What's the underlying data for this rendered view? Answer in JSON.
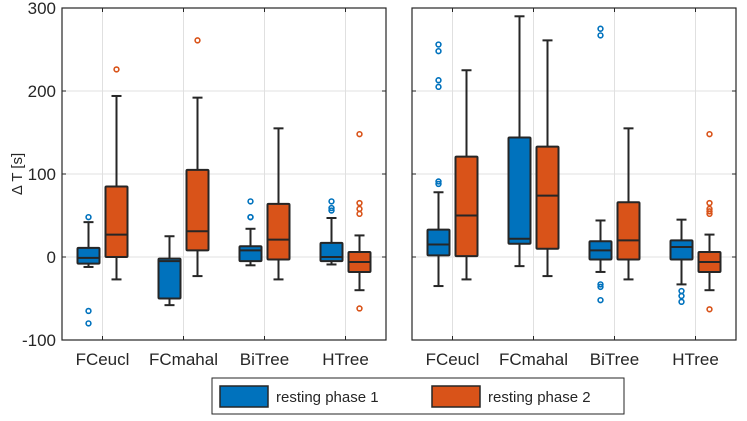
{
  "chart_data": {
    "type": "box",
    "ylabel": "Δ T [s]",
    "ylim": [
      -100,
      300
    ],
    "yticks": [
      -100,
      0,
      100,
      200,
      300
    ],
    "grid": true,
    "categories": [
      "FCeucl",
      "FCmahal",
      "BiTree",
      "HTree"
    ],
    "legend": {
      "placement": "bottom",
      "entries": [
        "resting phase 1",
        "resting phase 2"
      ]
    },
    "colors": {
      "resting phase 1": "#0072BD",
      "resting phase 2": "#D95319",
      "grid": "#E0E0E0",
      "axes": "#262626"
    },
    "panels": [
      {
        "name": "left",
        "boxes": [
          {
            "category": "FCeucl",
            "series": "resting phase 1",
            "whisker_low": -12,
            "q1": -8,
            "median": -1,
            "q3": 11,
            "whisker_high": 42,
            "outliers": [
              48,
              -65,
              -80
            ]
          },
          {
            "category": "FCeucl",
            "series": "resting phase 2",
            "whisker_low": -27,
            "q1": 0,
            "median": 27,
            "q3": 85,
            "whisker_high": 194,
            "outliers": [
              226
            ]
          },
          {
            "category": "FCmahal",
            "series": "resting phase 1",
            "whisker_low": -58,
            "q1": -50,
            "median": -5,
            "q3": -2,
            "whisker_high": 25,
            "outliers": []
          },
          {
            "category": "FCmahal",
            "series": "resting phase 2",
            "whisker_low": -23,
            "q1": 8,
            "median": 31,
            "q3": 105,
            "whisker_high": 192,
            "outliers": [
              261
            ]
          },
          {
            "category": "BiTree",
            "series": "resting phase 1",
            "whisker_low": -10,
            "q1": -5,
            "median": 8,
            "q3": 13,
            "whisker_high": 34,
            "outliers": [
              67,
              48,
              48
            ]
          },
          {
            "category": "BiTree",
            "series": "resting phase 2",
            "whisker_low": -27,
            "q1": -3,
            "median": 21,
            "q3": 64,
            "whisker_high": 155,
            "outliers": []
          },
          {
            "category": "HTree",
            "series": "resting phase 1",
            "whisker_low": -9,
            "q1": -5,
            "median": 0,
            "q3": 17,
            "whisker_high": 47,
            "outliers": [
              67,
              59,
              56
            ]
          },
          {
            "category": "HTree",
            "series": "resting phase 2",
            "whisker_low": -40,
            "q1": -18,
            "median": -6,
            "q3": 6,
            "whisker_high": 26,
            "outliers": [
              148,
              65,
              58,
              52,
              -62
            ]
          }
        ]
      },
      {
        "name": "right",
        "boxes": [
          {
            "category": "FCeucl",
            "series": "resting phase 1",
            "whisker_low": -35,
            "q1": 2,
            "median": 15,
            "q3": 33,
            "whisker_high": 78,
            "outliers": [
              91,
              88,
              248,
              256,
              213,
              205
            ]
          },
          {
            "category": "FCeucl",
            "series": "resting phase 2",
            "whisker_low": -27,
            "q1": 1,
            "median": 50,
            "q3": 121,
            "whisker_high": 225,
            "outliers": []
          },
          {
            "category": "FCmahal",
            "series": "resting phase 1",
            "whisker_low": -11,
            "q1": 16,
            "median": 22,
            "q3": 144,
            "whisker_high": 290,
            "outliers": []
          },
          {
            "category": "FCmahal",
            "series": "resting phase 2",
            "whisker_low": -23,
            "q1": 10,
            "median": 74,
            "q3": 133,
            "whisker_high": 261,
            "outliers": []
          },
          {
            "category": "BiTree",
            "series": "resting phase 1",
            "whisker_low": -18,
            "q1": -3,
            "median": 8,
            "q3": 19,
            "whisker_high": 44,
            "outliers": [
              275,
              267,
              -33,
              -36,
              -52
            ]
          },
          {
            "category": "BiTree",
            "series": "resting phase 2",
            "whisker_low": -27,
            "q1": -3,
            "median": 20,
            "q3": 66,
            "whisker_high": 155,
            "outliers": []
          },
          {
            "category": "HTree",
            "series": "resting phase 1",
            "whisker_low": -33,
            "q1": -3,
            "median": 12,
            "q3": 20,
            "whisker_high": 45,
            "outliers": [
              -41,
              -47,
              -54
            ]
          },
          {
            "category": "HTree",
            "series": "resting phase 2",
            "whisker_low": -40,
            "q1": -18,
            "median": -6,
            "q3": 6,
            "whisker_high": 27,
            "outliers": [
              148,
              65,
              58,
              55,
              52,
              -63
            ]
          }
        ]
      }
    ]
  }
}
